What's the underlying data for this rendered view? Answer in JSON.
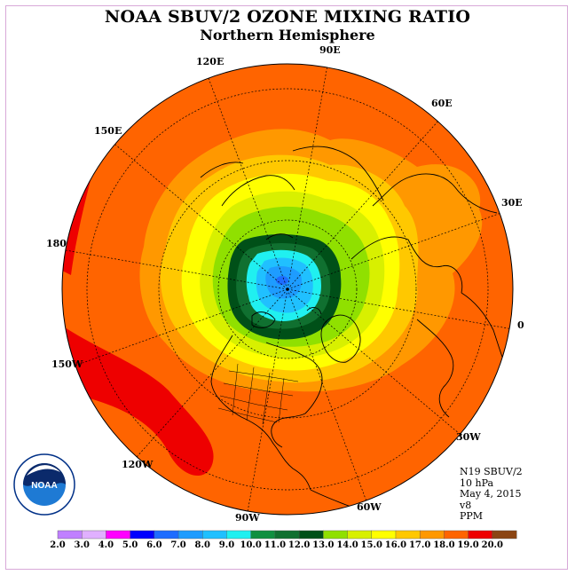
{
  "title": "NOAA SBUV/2 OZONE MIXING RATIO",
  "subtitle": "Northern Hemisphere",
  "longitude_labels": [
    "90E",
    "60E",
    "30E",
    "0",
    "30W",
    "60W",
    "90W",
    "120W",
    "150W",
    "180",
    "150E",
    "120E"
  ],
  "info": {
    "satellite": "N19 SBUV/2",
    "pressure": "10 hPa",
    "date": "May 4, 2015",
    "version": "v8",
    "units": "PPM"
  },
  "logo": {
    "text": "NOAA",
    "ring_text": "NATIONAL OCEANIC AND ATMOSPHERIC ADMINISTRATION · U.S. DEPARTMENT OF COMMERCE"
  },
  "colorbar": {
    "labels": [
      "2.0",
      "3.0",
      "4.0",
      "5.0",
      "6.0",
      "7.0",
      "8.0",
      "9.0",
      "10.0",
      "11.0",
      "12.0",
      "13.0",
      "14.0",
      "15.0",
      "16.0",
      "17.0",
      "18.0",
      "19.0",
      "20.0"
    ],
    "colors": [
      "#c080ff",
      "#e0b0ff",
      "#ff00ff",
      "#0000ff",
      "#1e6cff",
      "#1e9cff",
      "#20c0ff",
      "#20f0f0",
      "#109040",
      "#107030",
      "#005018",
      "#90e000",
      "#d8f000",
      "#ffff00",
      "#ffc800",
      "#ff9800",
      "#ff6400",
      "#ee0000",
      "#8b4513"
    ]
  }
}
